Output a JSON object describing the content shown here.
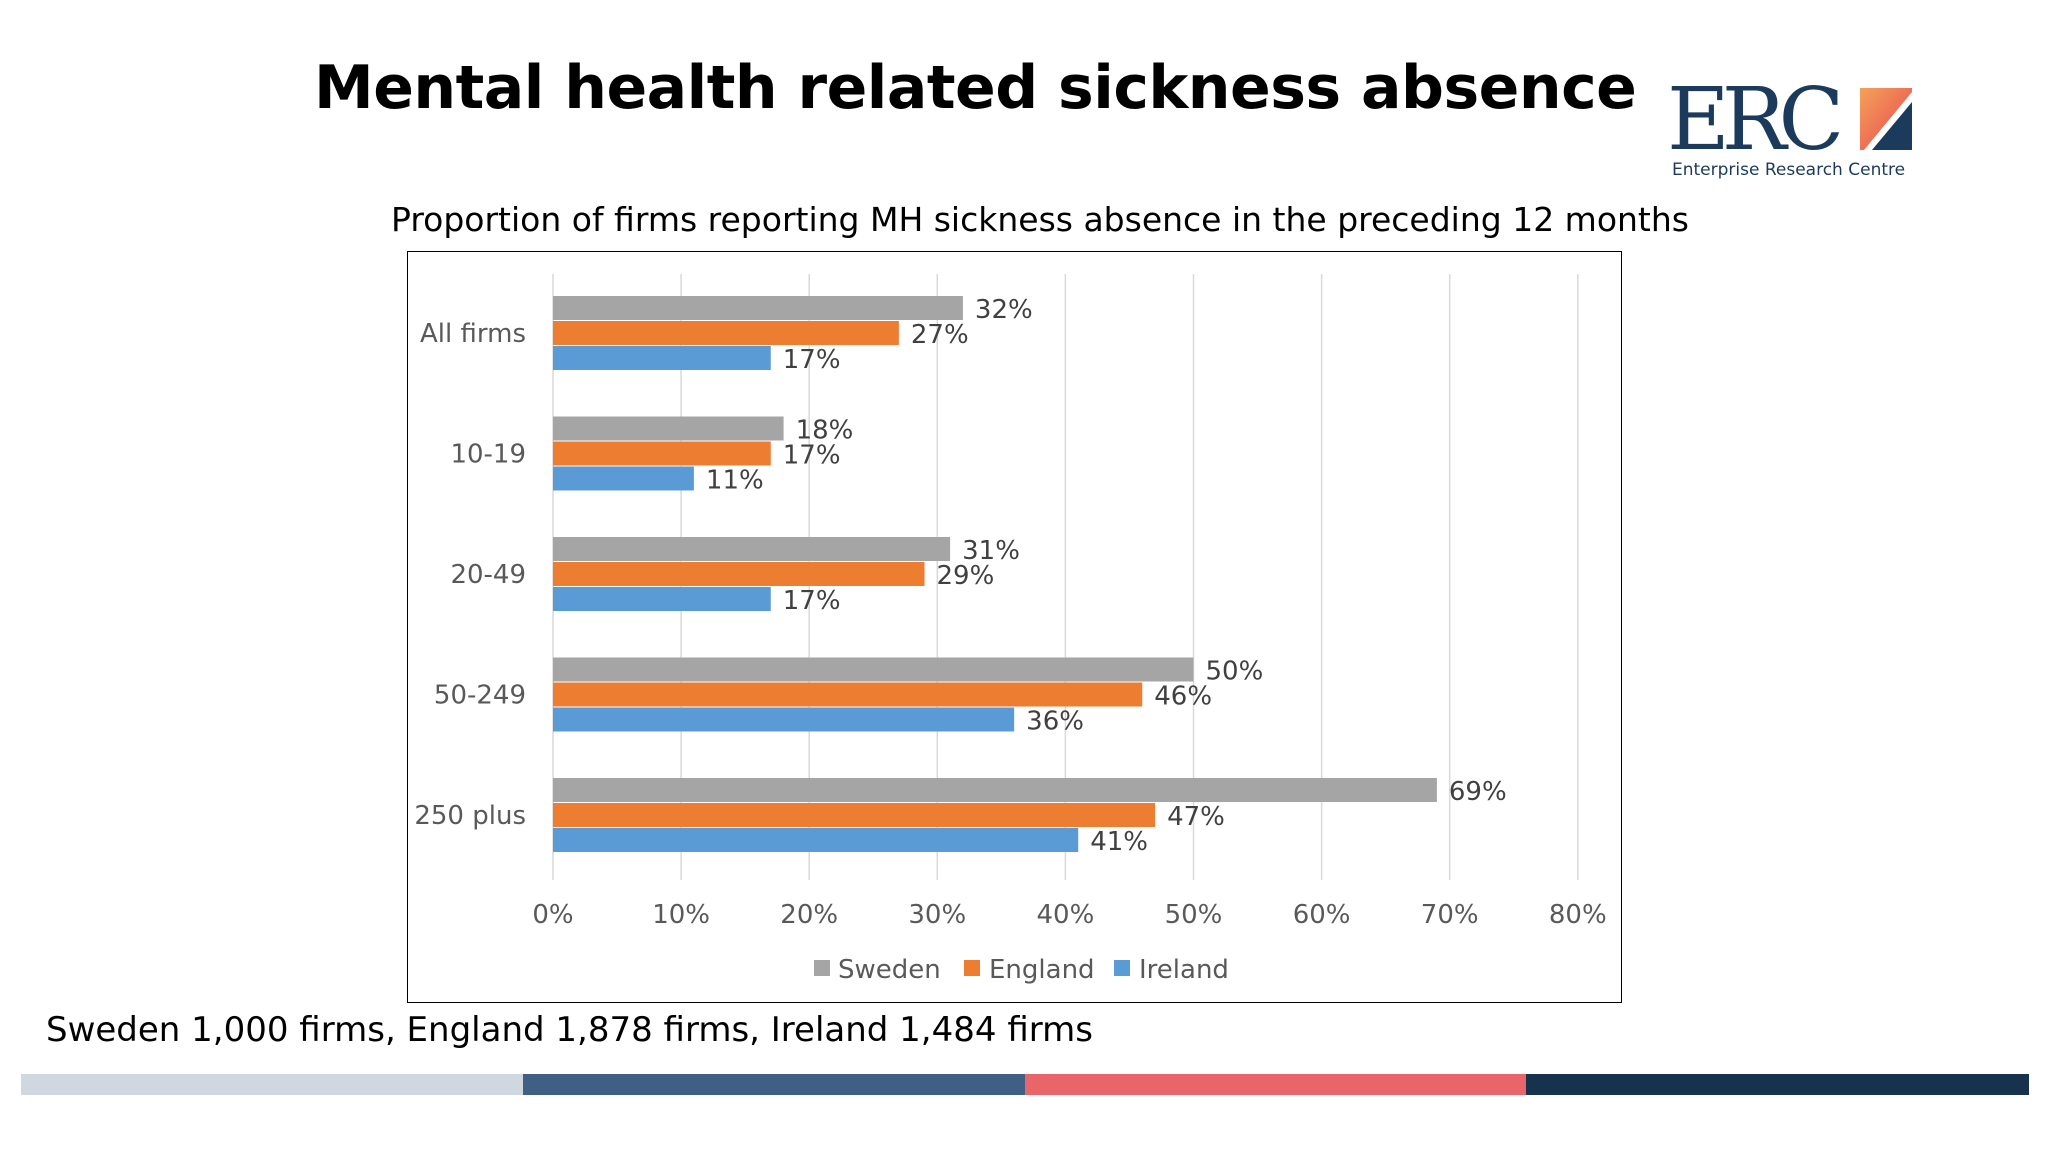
{
  "slide": {
    "title": "Mental health related sickness absence",
    "footnote": "Sweden 1,000 firms, England 1,878 firms, Ireland 1,484 firms"
  },
  "logo": {
    "text": "ERC",
    "subtitle": "Enterprise Research Centre",
    "color": "#1b3a5c"
  },
  "footer_stripe_colors": [
    "#cfd8e0",
    "#3f5f85",
    "#e8666a",
    "#17324d"
  ],
  "chart_data": {
    "type": "bar",
    "orientation": "horizontal",
    "title": "Proportion of firms reporting MH sickness absence in the preceding 12 months",
    "categories": [
      "All firms",
      "10-19",
      "20-49",
      "50-249",
      "250 plus"
    ],
    "series": [
      {
        "name": "Sweden",
        "color": "#a5a5a5",
        "values": [
          32,
          18,
          31,
          50,
          69
        ]
      },
      {
        "name": "England",
        "color": "#ed7d31",
        "values": [
          27,
          17,
          29,
          46,
          47
        ]
      },
      {
        "name": "Ireland",
        "color": "#5b9bd5",
        "values": [
          17,
          11,
          17,
          36,
          41
        ]
      }
    ],
    "data_labels": [
      [
        "32%",
        "18%",
        "31%",
        "50%",
        "69%"
      ],
      [
        "27%",
        "17%",
        "29%",
        "46%",
        "47%"
      ],
      [
        "17%",
        "11%",
        "17%",
        "36%",
        "41%"
      ]
    ],
    "xlim": [
      0,
      80
    ],
    "x_ticks": [
      0,
      10,
      20,
      30,
      40,
      50,
      60,
      70,
      80
    ],
    "x_tick_labels": [
      "0%",
      "10%",
      "20%",
      "30%",
      "40%",
      "50%",
      "60%",
      "70%",
      "80%"
    ],
    "grid": "vertical",
    "legend": "bottom-center",
    "xlabel": "",
    "ylabel": ""
  }
}
